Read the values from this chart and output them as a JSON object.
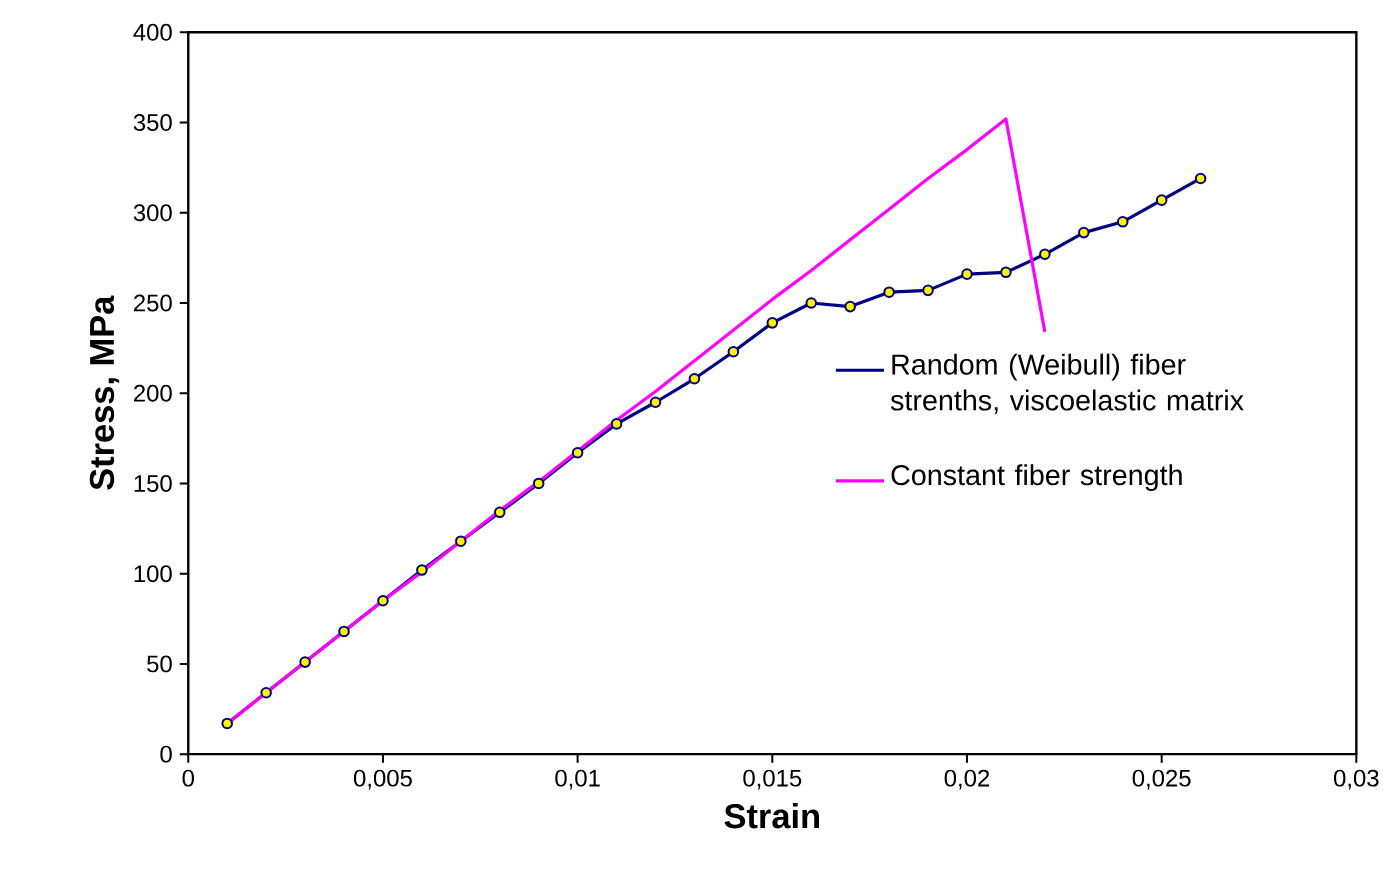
{
  "chart_data": {
    "type": "line",
    "xlabel": "Strain",
    "ylabel": "Stress, MPa",
    "xlim": [
      0,
      0.03
    ],
    "ylim": [
      0,
      400
    ],
    "xticks": [
      0,
      {
        "value": 0.005,
        "label": "0,005"
      },
      {
        "value": 0.01,
        "label": "0,01"
      },
      {
        "value": 0.015,
        "label": "0,015"
      },
      {
        "value": 0.02,
        "label": "0,02"
      },
      {
        "value": 0.025,
        "label": "0,025"
      },
      {
        "value": 0.03,
        "label": "0,03"
      }
    ],
    "yticks": [
      0,
      50,
      100,
      150,
      200,
      250,
      300,
      350,
      400
    ],
    "grid": false,
    "legend": "right",
    "series": [
      {
        "name": "Random (Weibull) fiber strenths, viscoelastic matrix",
        "color": "#000080",
        "marker": "circle",
        "x": [
          0.001,
          0.002,
          0.003,
          0.004,
          0.005,
          0.006,
          0.007,
          0.008,
          0.009,
          0.01,
          0.011,
          0.012,
          0.013,
          0.014,
          0.015,
          0.016,
          0.017,
          0.018,
          0.019,
          0.02,
          0.021,
          0.022,
          0.023,
          0.024,
          0.025,
          0.026
        ],
        "values": [
          17,
          34,
          51,
          68,
          85,
          102,
          118,
          134,
          150,
          167,
          183,
          195,
          208,
          223,
          239,
          250,
          248,
          256,
          257,
          266,
          267,
          277,
          289,
          295,
          307,
          319
        ]
      },
      {
        "name": "Constant fiber strength",
        "color": "#ff00ff",
        "marker": "none",
        "x": [
          0.001,
          0.002,
          0.003,
          0.004,
          0.005,
          0.006,
          0.007,
          0.008,
          0.009,
          0.01,
          0.011,
          0.012,
          0.013,
          0.014,
          0.015,
          0.016,
          0.017,
          0.018,
          0.019,
          0.02,
          0.021,
          0.022
        ],
        "values": [
          17,
          34,
          51,
          68,
          85,
          101,
          118,
          135,
          151,
          168,
          185,
          201,
          218,
          235,
          252,
          268,
          285,
          302,
          319,
          335,
          352,
          234
        ]
      }
    ]
  }
}
